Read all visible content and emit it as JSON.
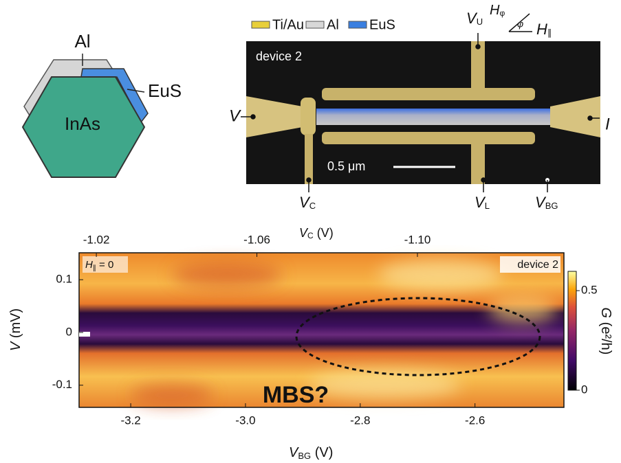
{
  "schematic": {
    "shell_label": "Al",
    "ferro_label": "EuS",
    "core_label": "InAs"
  },
  "device": {
    "legend": [
      "Ti/Au",
      "Al",
      "EuS"
    ],
    "image_label": "device 2",
    "scale_bar": "0.5 μm",
    "terminals": {
      "V": "V",
      "I": "I",
      "VU": {
        "main": "V",
        "sub": "U"
      },
      "VC": {
        "main": "V",
        "sub": "C"
      },
      "VL": {
        "main": "V",
        "sub": "L"
      },
      "VBG": {
        "main": "V",
        "sub": "BG"
      }
    },
    "field": {
      "h_phi": {
        "main": "H",
        "sub": "φ"
      },
      "angle": "φ",
      "h_par": {
        "main": "H",
        "sub": "∥"
      }
    }
  },
  "plot": {
    "top_axis": {
      "main": "V",
      "sub": "C",
      "unit": " (V)",
      "xlim": [
        -1.0157,
        -1.1365
      ],
      "ticks": [
        -1.02,
        -1.06,
        {
          "value": -1.1,
          "label": "-1.10"
        }
      ]
    },
    "bottom_axis": {
      "main": "V",
      "sub": "BG",
      "unit": " (V)",
      "xlim": [
        -3.29,
        -2.445
      ],
      "ticks": [
        -3.2,
        {
          "value": -3,
          "label": "-3.0"
        },
        -2.8,
        -2.6
      ]
    },
    "y_axis": {
      "main": "V",
      "unit": " (mV)",
      "ylim": [
        -0.142,
        0.151
      ],
      "ticks": [
        0.1,
        0,
        -0.1
      ]
    },
    "colorbar": {
      "main": "G",
      "unit": " (e²/h)",
      "clim": [
        0,
        0.597
      ],
      "ticks": [
        0.5,
        0
      ]
    },
    "field_label": {
      "main": "H",
      "sub": "∥",
      "rest": " = 0"
    },
    "device_label": "device 2",
    "annotation": "MBS?"
  }
}
